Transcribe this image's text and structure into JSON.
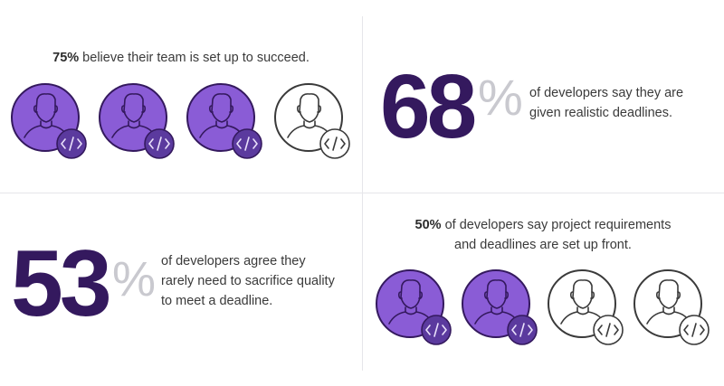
{
  "panels": {
    "team_success": {
      "pct_text": "75%",
      "rest_text": " believe their team is set up to succeed.",
      "value_percent": 75,
      "avatars": [
        "filled",
        "filled",
        "filled",
        "outline"
      ]
    },
    "realistic_deadlines": {
      "number": "68",
      "percent_sign": "%",
      "line1": "of developers say they are",
      "line2": "given realistic deadlines."
    },
    "sacrifice_quality": {
      "number": "53",
      "percent_sign": "%",
      "line1": "of developers agree they",
      "line2": "rarely need to sacrifice quality",
      "line3": "to meet a deadline."
    },
    "requirements_upfront": {
      "pct_text": "50%",
      "line1_rest": " of developers say project requirements",
      "line2": "and deadlines are set up front.",
      "value_percent": 50,
      "avatars": [
        "filled",
        "filled",
        "outline",
        "outline"
      ]
    }
  },
  "icons": {
    "avatar": "developer-avatar-icon",
    "badge": "code-brackets-icon"
  },
  "colors": {
    "accent_purple": "#8a5cd6",
    "dark_purple": "#34195e",
    "badge_purple": "#5b3a9e",
    "outline_gray": "#3a3a3a",
    "percent_gray": "#c9c9cf"
  }
}
